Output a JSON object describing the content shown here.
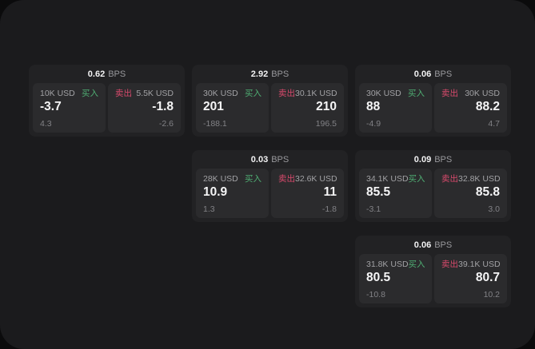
{
  "labels": {
    "buy": "买入",
    "sell": "卖出",
    "bps": "BPS"
  },
  "colors": {
    "background": "#0b0b0c",
    "panel": "#1b1b1d",
    "card": "#222224",
    "tile": "#2b2b2d",
    "buy_accent": "#4fae73",
    "sell_accent": "#d84a6c",
    "price_text": "#f5f5f6",
    "muted_text": "#828286"
  },
  "cards": [
    {
      "bps": "0.62",
      "buy": {
        "size": "10K USD",
        "price": "-3.7",
        "delta": "4.3"
      },
      "sell": {
        "size": "5.5K USD",
        "price": "-1.8",
        "delta": "-2.6"
      }
    },
    {
      "bps": "2.92",
      "buy": {
        "size": "30K USD",
        "price": "201",
        "delta": "-188.1"
      },
      "sell": {
        "size": "30.1K USD",
        "price": "210",
        "delta": "196.5"
      }
    },
    {
      "bps": "0.06",
      "buy": {
        "size": "30K USD",
        "price": "88",
        "delta": "-4.9"
      },
      "sell": {
        "size": "30K USD",
        "price": "88.2",
        "delta": "4.7"
      }
    },
    {
      "bps": "0.03",
      "buy": {
        "size": "28K USD",
        "price": "10.9",
        "delta": "1.3"
      },
      "sell": {
        "size": "32.6K USD",
        "price": "11",
        "delta": "-1.8"
      }
    },
    {
      "bps": "0.09",
      "buy": {
        "size": "34.1K USD",
        "price": "85.5",
        "delta": "-3.1"
      },
      "sell": {
        "size": "32.8K USD",
        "price": "85.8",
        "delta": "3.0"
      }
    },
    {
      "bps": "0.06",
      "buy": {
        "size": "31.8K USD",
        "price": "80.5",
        "delta": "-10.8"
      },
      "sell": {
        "size": "39.1K USD",
        "price": "80.7",
        "delta": "10.2"
      }
    }
  ]
}
